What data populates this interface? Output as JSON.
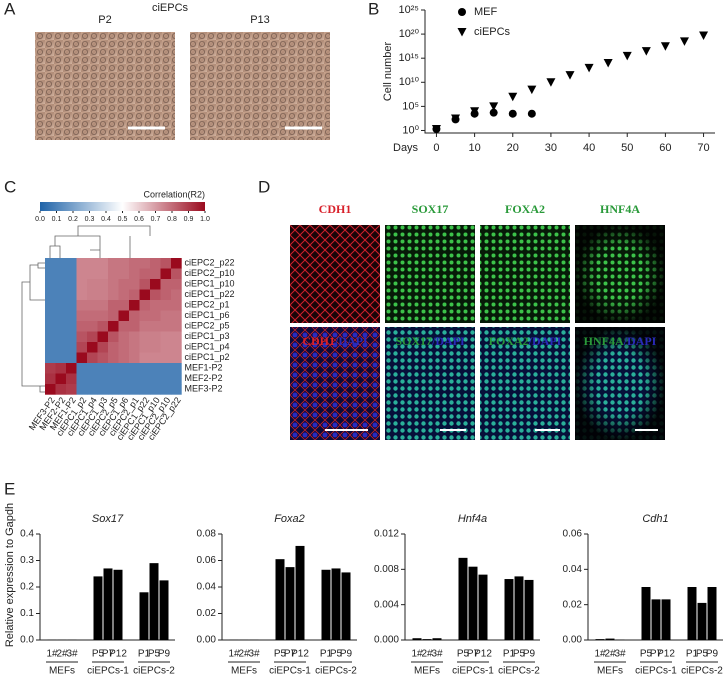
{
  "panel_letters": [
    "A",
    "B",
    "C",
    "D",
    "E"
  ],
  "panel_a": {
    "title": "ciEPCs",
    "images": [
      "P2",
      "P13"
    ]
  },
  "panel_d": {
    "top_labels": [
      "CDH1",
      "SOX17",
      "FOXA2",
      "HNF4A"
    ],
    "bottom_labels": [
      [
        "CDH1",
        "/DAPI"
      ],
      [
        "SOX17",
        "/DAPI"
      ],
      [
        "FOXA2",
        "/DAPI"
      ],
      [
        "HNF4A",
        "/DAPI"
      ]
    ],
    "label_colors": [
      "#d8202a",
      "#2a9a3a",
      "#2a9a3a",
      "#2a9a3a"
    ],
    "dapi_color": "#2a2aba"
  },
  "panel_e": {
    "ylabel": "Relative expression to Gapdh"
  },
  "chart_data": [
    {
      "type": "scatter",
      "log_y": true,
      "xlabel": "Days",
      "ylabel": "Cell number",
      "legend": "top-left",
      "xlim": [
        -3,
        73
      ],
      "xticks": [
        0,
        10,
        20,
        30,
        40,
        50,
        60,
        70
      ],
      "ylim": [
        0.3,
        1e+25
      ],
      "yticks": [
        {
          "value": 1,
          "label": "10⁰"
        },
        {
          "value": 100000,
          "label": "10⁵"
        },
        {
          "value": 10000000000.0,
          "label": "10¹⁰"
        },
        {
          "value": 1000000000000000.0,
          "label": "10¹⁵"
        },
        {
          "value": 1e+20,
          "label": "10²⁰"
        },
        {
          "value": 1e+25,
          "label": "10²⁵"
        }
      ],
      "series": [
        {
          "name": "MEF",
          "marker": "circle",
          "color": "#000000",
          "x": [
            0,
            5,
            10,
            15,
            20,
            25
          ],
          "values": [
            2,
            200,
            3000,
            5000,
            3000,
            3000
          ]
        },
        {
          "name": "ciEPCs",
          "marker": "triangle-down",
          "color": "#000000",
          "x": [
            0,
            5,
            10,
            15,
            20,
            25,
            30,
            35,
            40,
            45,
            50,
            55,
            60,
            65,
            70
          ],
          "values": [
            2,
            300,
            10000,
            100000,
            10000000,
            300000000,
            10000000000.0,
            300000000000.0,
            10000000000000.0,
            100000000000000.0,
            3000000000000000.0,
            3e+16,
            3e+17,
            3e+18,
            5e+19
          ]
        }
      ]
    },
    {
      "type": "heatmap",
      "legend_title": "Correlation(R2)",
      "colorbar_ticks": [
        {
          "value": 0,
          "label": "0.0"
        },
        0.1,
        0.2,
        0.3,
        0.4,
        0.5,
        0.6,
        0.7,
        0.8,
        0.9,
        {
          "value": 1,
          "label": "1.0"
        }
      ],
      "colormap": [
        "#1f63a8",
        "#ffffff",
        "#9a0a1e"
      ],
      "rows": [
        "ciEPC2_p22",
        "ciEPC2_p10",
        "ciEPC1_p10",
        "ciEPC1_p22",
        "ciEPC2_p1",
        "ciEPC1_p6",
        "ciEPC2_p5",
        "ciEPC1_p3",
        "ciEPC1_p4",
        "ciEPC1_p2",
        "MEF1-P2",
        "MEF2-P2",
        "MEF3-P2"
      ],
      "columns": [
        "MEF3-P2",
        "MEF2-P2",
        "MEF1-P2",
        "ciEPC1_p2",
        "ciEPC1_p4",
        "ciEPC1_p3",
        "ciEPC2_p5",
        "ciEPC1_p6",
        "ciEPC2_p1",
        "ciEPC1_p22",
        "ciEPC1_p10",
        "ciEPC2_p10",
        "ciEPC2_p22"
      ],
      "matrix": [
        [
          0.1,
          0.1,
          0.1,
          0.75,
          0.75,
          0.75,
          0.78,
          0.78,
          0.8,
          0.8,
          0.82,
          0.85,
          1
        ],
        [
          0.1,
          0.1,
          0.1,
          0.75,
          0.75,
          0.75,
          0.78,
          0.78,
          0.8,
          0.82,
          0.82,
          1,
          0.85
        ],
        [
          0.1,
          0.1,
          0.1,
          0.75,
          0.76,
          0.76,
          0.78,
          0.8,
          0.8,
          0.85,
          1,
          0.82,
          0.82
        ],
        [
          0.1,
          0.1,
          0.1,
          0.75,
          0.76,
          0.76,
          0.78,
          0.8,
          0.82,
          1,
          0.85,
          0.82,
          0.8
        ],
        [
          0.1,
          0.1,
          0.1,
          0.78,
          0.78,
          0.78,
          0.82,
          0.82,
          1,
          0.82,
          0.8,
          0.8,
          0.8
        ],
        [
          0.1,
          0.1,
          0.1,
          0.8,
          0.8,
          0.8,
          0.82,
          1,
          0.82,
          0.8,
          0.8,
          0.78,
          0.78
        ],
        [
          0.1,
          0.1,
          0.1,
          0.82,
          0.82,
          0.85,
          1,
          0.82,
          0.82,
          0.78,
          0.78,
          0.78,
          0.78
        ],
        [
          0.1,
          0.1,
          0.1,
          0.85,
          0.88,
          1,
          0.85,
          0.8,
          0.78,
          0.76,
          0.76,
          0.75,
          0.75
        ],
        [
          0.1,
          0.1,
          0.1,
          0.88,
          1,
          0.88,
          0.82,
          0.8,
          0.78,
          0.76,
          0.76,
          0.75,
          0.75
        ],
        [
          0.1,
          0.1,
          0.1,
          1,
          0.88,
          0.85,
          0.82,
          0.8,
          0.78,
          0.75,
          0.75,
          0.75,
          0.75
        ],
        [
          0.9,
          0.92,
          1,
          0.1,
          0.1,
          0.1,
          0.1,
          0.1,
          0.1,
          0.1,
          0.1,
          0.1,
          0.1
        ],
        [
          0.92,
          1,
          0.92,
          0.1,
          0.1,
          0.1,
          0.1,
          0.1,
          0.1,
          0.1,
          0.1,
          0.1,
          0.1
        ],
        [
          1,
          0.92,
          0.9,
          0.1,
          0.1,
          0.1,
          0.1,
          0.1,
          0.1,
          0.1,
          0.1,
          0.1,
          0.1
        ]
      ]
    },
    {
      "type": "bar",
      "title": "Sox17",
      "color": "#000000",
      "ylim": [
        0,
        0.4
      ],
      "yticks": [
        {
          "value": 0,
          "label": "0.0"
        },
        0.1,
        0.2,
        0.3,
        0.4
      ],
      "groups": [
        {
          "name": "MEFs",
          "categories": [
            "1#",
            "2#",
            "3#"
          ],
          "values": [
            0.001,
            0.001,
            0.001
          ]
        },
        {
          "name": "ciEPCs-1",
          "categories": [
            "P5",
            "P7",
            "P12"
          ],
          "values": [
            0.24,
            0.27,
            0.265
          ]
        },
        {
          "name": "ciEPCs-2",
          "categories": [
            "P1",
            "P5",
            "P9"
          ],
          "values": [
            0.18,
            0.29,
            0.225
          ]
        }
      ]
    },
    {
      "type": "bar",
      "title": "Foxa2",
      "color": "#000000",
      "ylim": [
        0,
        0.08
      ],
      "yticks": [
        {
          "value": 0,
          "label": "0.00"
        },
        0.02,
        0.04,
        0.06,
        0.08
      ],
      "groups": [
        {
          "name": "MEFs",
          "categories": [
            "1#",
            "2#",
            "3#"
          ],
          "values": [
            0.0002,
            0.0002,
            0.0002
          ]
        },
        {
          "name": "ciEPCs-1",
          "categories": [
            "P5",
            "P7",
            "P12"
          ],
          "values": [
            0.061,
            0.055,
            0.071
          ]
        },
        {
          "name": "ciEPCs-2",
          "categories": [
            "P1",
            "P5",
            "P9"
          ],
          "values": [
            0.053,
            0.054,
            0.051
          ]
        }
      ]
    },
    {
      "type": "bar",
      "title": "Hnf4a",
      "color": "#000000",
      "ylim": [
        0,
        0.012
      ],
      "yticks": [
        {
          "value": 0,
          "label": "0.000"
        },
        0.004,
        0.008,
        0.012
      ],
      "groups": [
        {
          "name": "MEFs",
          "categories": [
            "1#",
            "2#",
            "3#"
          ],
          "values": [
            0.0002,
            0.0001,
            0.0002
          ]
        },
        {
          "name": "ciEPCs-1",
          "categories": [
            "P5",
            "P7",
            "P12"
          ],
          "values": [
            0.0093,
            0.0083,
            0.0074
          ]
        },
        {
          "name": "ciEPCs-2",
          "categories": [
            "P1",
            "P5",
            "P9"
          ],
          "values": [
            0.0069,
            0.0072,
            0.0068
          ]
        }
      ]
    },
    {
      "type": "bar",
      "title": "Cdh1",
      "color": "#000000",
      "ylim": [
        0,
        0.06
      ],
      "yticks": [
        {
          "value": 0,
          "label": "0.00"
        },
        0.02,
        0.04,
        0.06
      ],
      "groups": [
        {
          "name": "MEFs",
          "categories": [
            "1#",
            "2#",
            "3#"
          ],
          "values": [
            0.0005,
            0.0008,
            0.0002
          ]
        },
        {
          "name": "ciEPCs-1",
          "categories": [
            "P5",
            "P7",
            "P12"
          ],
          "values": [
            0.03,
            0.023,
            0.023
          ]
        },
        {
          "name": "ciEPCs-2",
          "categories": [
            "P1",
            "P5",
            "P9"
          ],
          "values": [
            0.03,
            0.021,
            0.03
          ]
        }
      ]
    }
  ]
}
